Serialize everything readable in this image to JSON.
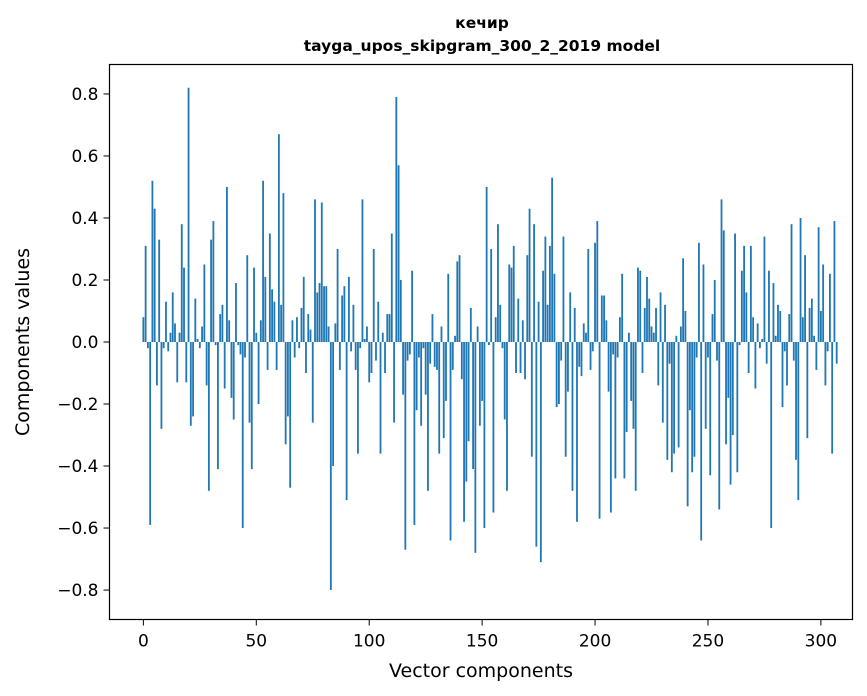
{
  "chart_data": {
    "type": "bar",
    "title_line1": "кечир",
    "title_line2": "tayga_upos_skipgram_300_2_2019 model",
    "xlabel": "Vector components",
    "ylabel": "Components values",
    "xlim": [
      -15,
      314
    ],
    "ylim": [
      -0.895,
      0.895
    ],
    "xticks": [
      0,
      50,
      100,
      150,
      200,
      250,
      300
    ],
    "xtick_labels": [
      "0",
      "50",
      "100",
      "150",
      "200",
      "250",
      "300"
    ],
    "yticks": [
      -0.8,
      -0.6,
      -0.4,
      -0.2,
      0.0,
      0.2,
      0.4,
      0.6,
      0.8
    ],
    "ytick_labels": [
      "−0.8",
      "−0.6",
      "−0.4",
      "−0.2",
      "0.0",
      "0.2",
      "0.4",
      "0.6",
      "0.8"
    ],
    "bar_color": "#1f77b4",
    "values": [
      0.08,
      0.31,
      -0.02,
      -0.59,
      0.52,
      0.43,
      -0.14,
      0.33,
      -0.28,
      -0.02,
      0.13,
      -0.03,
      0.03,
      0.16,
      0.06,
      -0.13,
      0.03,
      0.38,
      0.24,
      -0.13,
      0.82,
      -0.27,
      -0.24,
      0.14,
      0.01,
      -0.02,
      0.05,
      0.25,
      -0.14,
      -0.48,
      0.33,
      0.39,
      -0.01,
      -0.41,
      0.09,
      0.12,
      -0.15,
      0.5,
      0.07,
      -0.18,
      -0.25,
      0.19,
      -0.01,
      -0.04,
      -0.6,
      -0.05,
      0.28,
      -0.26,
      -0.41,
      0.24,
      0.03,
      -0.2,
      0.07,
      0.52,
      0.21,
      -0.09,
      0.35,
      0.17,
      0.13,
      -0.09,
      0.67,
      0.12,
      0.48,
      -0.33,
      -0.24,
      -0.47,
      0.07,
      -0.05,
      0.08,
      -0.02,
      0.11,
      0.21,
      -0.1,
      0.09,
      0.04,
      -0.26,
      0.46,
      0.16,
      0.19,
      0.45,
      0.18,
      0.18,
      0.05,
      -0.8,
      -0.4,
      0.06,
      0.3,
      -0.09,
      0.15,
      0.18,
      -0.51,
      0.21,
      -0.03,
      0.12,
      -0.09,
      -0.36,
      -0.02,
      0.46,
      0.01,
      0.05,
      -0.13,
      -0.1,
      0.3,
      -0.06,
      0.13,
      -0.36,
      0.03,
      -0.1,
      0.09,
      0.09,
      0.35,
      -0.26,
      0.79,
      0.57,
      0.2,
      -0.17,
      -0.67,
      -0.06,
      -0.04,
      0.23,
      -0.59,
      -0.22,
      -0.05,
      -0.27,
      -0.02,
      -0.17,
      -0.48,
      -0.07,
      0.09,
      -0.08,
      -0.09,
      -0.36,
      0.05,
      -0.31,
      -0.19,
      0.22,
      -0.64,
      -0.09,
      0.02,
      0.26,
      0.28,
      -0.12,
      -0.58,
      -0.45,
      -0.32,
      0.11,
      -0.41,
      -0.68,
      0.05,
      -0.27,
      -0.19,
      -0.6,
      0.5,
      -0.01,
      0.3,
      -0.55,
      0.08,
      0.38,
      0.12,
      -0.02,
      -0.25,
      -0.48,
      0.25,
      0.24,
      0.31,
      -0.1,
      0.14,
      -0.1,
      0.07,
      -0.12,
      0.28,
      0.43,
      -0.37,
      0.38,
      -0.66,
      0.13,
      -0.71,
      0.23,
      0.34,
      0.12,
      0.31,
      0.53,
      0.22,
      -0.21,
      -0.2,
      -0.06,
      0.34,
      -0.37,
      -0.16,
      0.16,
      -0.48,
      0.11,
      -0.58,
      -0.08,
      -0.11,
      0.06,
      0.03,
      0.3,
      -0.09,
      -0.03,
      0.32,
      0.39,
      -0.57,
      0.15,
      0.15,
      0.07,
      -0.16,
      -0.55,
      -0.04,
      -0.44,
      -0.05,
      0.08,
      0.22,
      -0.44,
      -0.29,
      0.03,
      -0.19,
      -0.28,
      -0.48,
      0.24,
      0.23,
      -0.1,
      0.11,
      0.21,
      0.14,
      0.05,
      0.03,
      0.11,
      -0.14,
      0.16,
      -0.26,
      0.12,
      -0.38,
      -0.07,
      -0.42,
      -0.36,
      0.02,
      -0.34,
      0.05,
      0.27,
      0.1,
      -0.53,
      -0.22,
      -0.42,
      -0.37,
      -0.05,
      0.32,
      -0.64,
      0.25,
      -0.28,
      -0.05,
      -0.43,
      0.09,
      0.2,
      -0.06,
      -0.54,
      0.46,
      0.36,
      -0.33,
      -0.18,
      -0.46,
      -0.3,
      0.35,
      -0.42,
      -0.01,
      0.23,
      0.31,
      0.16,
      -0.1,
      0.31,
      0.08,
      -0.15,
      0.06,
      -0.02,
      0.01,
      0.34,
      -0.07,
      0.23,
      -0.6,
      0.19,
      0.02,
      0.12,
      0.1,
      -0.21,
      -0.03,
      -0.14,
      0.09,
      0.38,
      -0.06,
      -0.38,
      -0.51,
      0.4,
      0.08,
      0.28,
      -0.31,
      0.11,
      0.14,
      0.02,
      -0.09,
      0.37,
      0.1,
      0.25,
      -0.14,
      -0.03,
      0.22,
      -0.36,
      0.39,
      -0.07
    ]
  }
}
